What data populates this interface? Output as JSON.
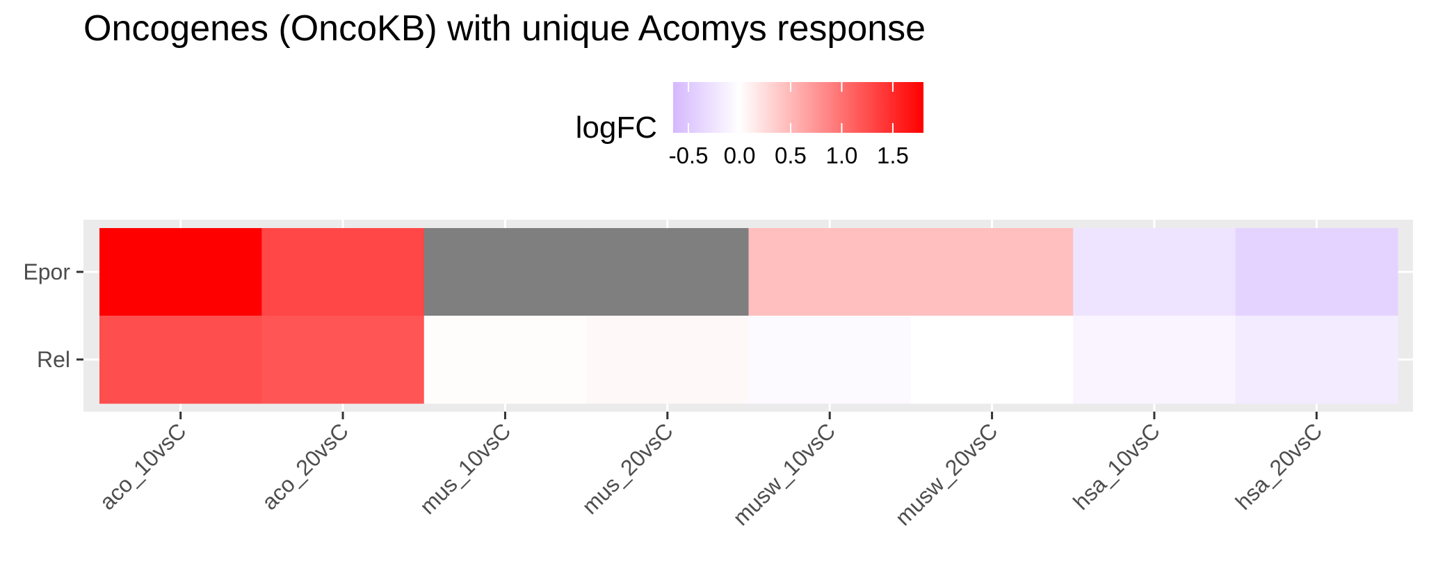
{
  "chart_data": {
    "type": "heatmap",
    "title": "Oncogenes (OncoKB) with unique Acomys response",
    "x_categories": [
      "aco_10vsC",
      "aco_20vsC",
      "mus_10vsC",
      "mus_20vsC",
      "musw_10vsC",
      "musw_20vsC",
      "hsa_10vsC",
      "hsa_20vsC"
    ],
    "y_categories": [
      "Epor",
      "Rel"
    ],
    "values": [
      [
        1.8,
        1.3,
        null,
        null,
        0.45,
        0.45,
        -0.25,
        -0.4
      ],
      [
        1.25,
        1.2,
        0.02,
        0.05,
        -0.05,
        0.0,
        -0.1,
        -0.18
      ]
    ],
    "legend": {
      "title": "logFC",
      "position": "top",
      "range": [
        -0.65,
        1.8
      ],
      "breaks": [
        -0.5,
        0.0,
        0.5,
        1.0,
        1.5
      ],
      "break_labels": [
        "-0.5",
        "0.0",
        "0.5",
        "1.0",
        "1.5"
      ],
      "low_color": "#d5b8ff",
      "mid_color": "#ffffff",
      "high_color": "#ff0000",
      "na_color": "#7f7f7f"
    },
    "panel_background": "#ebebeb",
    "grid": true
  }
}
